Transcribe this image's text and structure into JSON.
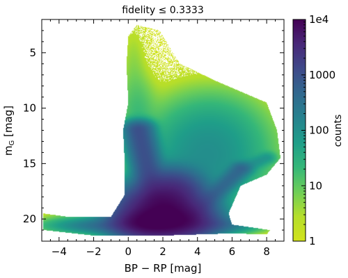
{
  "colors": {
    "viridis": [
      "#440154",
      "#482878",
      "#3e4989",
      "#31688e",
      "#26828e",
      "#1f9e89",
      "#35b779",
      "#6ece58",
      "#b5de2b",
      "#d2e21b"
    ]
  },
  "chart_data": {
    "type": "heatmap",
    "title": "fidelity ≤ 0.3333",
    "xlabel": "BP − RP [mag]",
    "ylabel_main": "m",
    "ylabel_sub": "G",
    "ylabel_unit": " [mag]",
    "xlim": [
      -5,
      9
    ],
    "ylim": [
      22,
      2
    ],
    "y_inverted": true,
    "xticks": [
      -4,
      -2,
      0,
      2,
      4,
      6,
      8
    ],
    "xtick_labels": [
      "−4",
      "−2",
      "0",
      "2",
      "4",
      "6",
      "8"
    ],
    "yticks": [
      5,
      10,
      15,
      20
    ],
    "ytick_labels": [
      "5",
      "10",
      "15",
      "20"
    ],
    "colorbar": {
      "label": "counts",
      "scale": "log",
      "range": [
        1,
        10000
      ],
      "ticks": [
        1,
        10,
        100,
        1000,
        10000
      ],
      "tick_labels": [
        "1",
        "10",
        "100",
        "1000",
        "1e4"
      ],
      "colormap": "viridis_r"
    },
    "density_components": [
      {
        "kind": "blob",
        "x": 2.0,
        "y": 19.5,
        "sx": 1.2,
        "sy": 1.2,
        "log_counts": 4.0
      },
      {
        "kind": "blob",
        "x": 1.0,
        "y": 20.3,
        "sx": 0.9,
        "sy": 0.6,
        "log_counts": 3.8
      },
      {
        "kind": "blob",
        "x": 3.0,
        "y": 20.2,
        "sx": 1.0,
        "sy": 0.7,
        "log_counts": 3.6
      },
      {
        "kind": "blob",
        "x": 2.5,
        "y": 17.5,
        "sx": 0.9,
        "sy": 1.0,
        "log_counts": 3.4
      },
      {
        "kind": "blob",
        "x": 0.5,
        "y": 20.6,
        "sx": 2.0,
        "sy": 0.35,
        "log_counts": 2.8
      },
      {
        "kind": "blob",
        "x": 4.0,
        "y": 20.5,
        "sx": 1.4,
        "sy": 0.4,
        "log_counts": 2.8
      },
      {
        "kind": "blob",
        "x": -1.5,
        "y": 20.3,
        "sx": 1.6,
        "sy": 0.6,
        "log_counts": 1.4
      },
      {
        "kind": "ridge",
        "x0": 0.6,
        "y0": 12.0,
        "x1": 1.5,
        "y1": 18.0,
        "width": 0.45,
        "log_counts": 3.0
      },
      {
        "kind": "ridge",
        "x0": 3.5,
        "y0": 20.0,
        "x1": 6.5,
        "y1": 15.5,
        "width": 0.35,
        "log_counts": 2.6
      },
      {
        "kind": "ridge",
        "x0": 6.5,
        "y0": 15.5,
        "x1": 8.0,
        "y1": 14.5,
        "width": 0.3,
        "log_counts": 1.8
      },
      {
        "kind": "blob",
        "x": 4.5,
        "y": 14.5,
        "sx": 1.8,
        "sy": 2.5,
        "log_counts": 2.0
      },
      {
        "kind": "blob",
        "x": 5.0,
        "y": 12.0,
        "sx": 1.5,
        "sy": 1.8,
        "log_counts": 1.2
      },
      {
        "kind": "blob",
        "x": 0.5,
        "y": 10.5,
        "sx": 0.6,
        "sy": 2.0,
        "log_counts": 1.2
      },
      {
        "kind": "blob",
        "x": 0.3,
        "y": 6.0,
        "sx": 0.4,
        "sy": 2.0,
        "log_counts": 0.5
      }
    ],
    "occupied_region": {
      "comment": "Outline of the pixels with counts >= 1, as [BP-RP, mG] vertices",
      "outline": [
        [
          -4.9,
          19.5
        ],
        [
          -3.5,
          19.8
        ],
        [
          -1.0,
          19.8
        ],
        [
          -0.2,
          17.8
        ],
        [
          -0.2,
          15.0
        ],
        [
          -0.3,
          12.0
        ],
        [
          0.0,
          9.5
        ],
        [
          -0.1,
          6.0
        ],
        [
          0.0,
          3.5
        ],
        [
          0.5,
          2.5
        ],
        [
          1.8,
          3.0
        ],
        [
          3.0,
          6.0
        ],
        [
          5.0,
          7.5
        ],
        [
          6.5,
          8.5
        ],
        [
          8.0,
          9.5
        ],
        [
          8.6,
          12.0
        ],
        [
          8.8,
          14.5
        ],
        [
          8.0,
          16.0
        ],
        [
          6.5,
          17.0
        ],
        [
          5.8,
          19.5
        ],
        [
          6.0,
          20.5
        ],
        [
          8.2,
          21.0
        ],
        [
          8.0,
          21.4
        ],
        [
          6.0,
          21.3
        ],
        [
          2.0,
          21.5
        ],
        [
          -2.0,
          21.5
        ],
        [
          -4.9,
          21.0
        ]
      ]
    }
  }
}
